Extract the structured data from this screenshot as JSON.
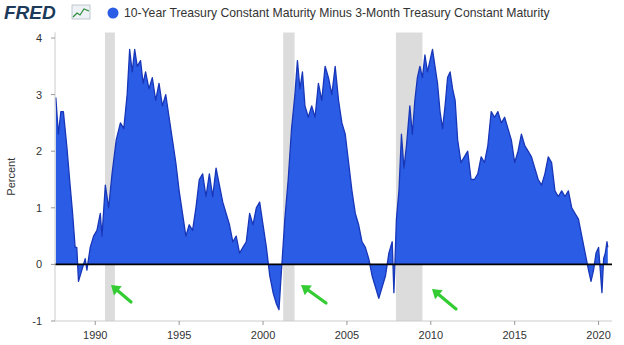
{
  "chart_data": {
    "type": "area",
    "logo": "FRED",
    "y_label": "Percent",
    "x": [
      1987.65,
      1987.8,
      1987.95,
      1988.1,
      1988.3,
      1988.5,
      1988.65,
      1988.8,
      1988.9,
      1989.0,
      1989.2,
      1989.4,
      1989.5,
      1989.7,
      1989.9,
      1990.1,
      1990.3,
      1990.4,
      1990.6,
      1990.8,
      1991.0,
      1991.25,
      1991.5,
      1991.7,
      1991.9,
      1992.05,
      1992.2,
      1992.35,
      1992.5,
      1992.7,
      1992.85,
      1993.0,
      1993.2,
      1993.4,
      1993.6,
      1993.8,
      1994.0,
      1994.2,
      1994.4,
      1994.6,
      1994.8,
      1995.0,
      1995.2,
      1995.4,
      1995.6,
      1995.8,
      1996.0,
      1996.2,
      1996.4,
      1996.6,
      1996.8,
      1997.0,
      1997.2,
      1997.4,
      1997.6,
      1997.8,
      1998.0,
      1998.2,
      1998.4,
      1998.6,
      1998.8,
      1999.0,
      1999.2,
      1999.4,
      1999.6,
      1999.8,
      2000.0,
      2000.2,
      2000.4,
      2000.6,
      2000.8,
      2000.95,
      2001.1,
      2001.3,
      2001.5,
      2001.7,
      2001.9,
      2002.05,
      2002.2,
      2002.35,
      2002.5,
      2002.7,
      2002.9,
      2003.1,
      2003.3,
      2003.5,
      2003.7,
      2003.9,
      2004.1,
      2004.3,
      2004.5,
      2004.7,
      2004.9,
      2005.1,
      2005.3,
      2005.5,
      2005.7,
      2005.9,
      2006.1,
      2006.3,
      2006.5,
      2006.7,
      2006.9,
      2007.1,
      2007.3,
      2007.5,
      2007.7,
      2007.8,
      2007.95,
      2008.1,
      2008.25,
      2008.4,
      2008.55,
      2008.75,
      2008.9,
      2009.05,
      2009.2,
      2009.35,
      2009.5,
      2009.65,
      2009.8,
      2009.95,
      2010.1,
      2010.25,
      2010.4,
      2010.55,
      2010.7,
      2010.85,
      2011.0,
      2011.15,
      2011.3,
      2011.45,
      2011.6,
      2011.8,
      2012.0,
      2012.2,
      2012.4,
      2012.6,
      2012.8,
      2013.0,
      2013.2,
      2013.4,
      2013.6,
      2013.8,
      2014.0,
      2014.2,
      2014.4,
      2014.6,
      2014.8,
      2015.0,
      2015.2,
      2015.4,
      2015.6,
      2015.8,
      2016.0,
      2016.2,
      2016.4,
      2016.6,
      2016.8,
      2017.0,
      2017.2,
      2017.4,
      2017.6,
      2017.8,
      2018.0,
      2018.2,
      2018.4,
      2018.6,
      2018.8,
      2019.0,
      2019.2,
      2019.4,
      2019.55,
      2019.7,
      2019.85,
      2020.0,
      2020.1,
      2020.2,
      2020.3,
      2020.4,
      2020.5,
      2020.55
    ],
    "series": [
      {
        "name": "10-Year Treasury Constant Maturity Minus 3-Month Treasury Constant Maturity",
        "color": "#2b5ce6",
        "values": [
          2.95,
          2.3,
          2.7,
          2.7,
          2.1,
          1.4,
          0.9,
          0.3,
          0.3,
          -0.3,
          -0.1,
          0.1,
          -0.1,
          0.3,
          0.5,
          0.6,
          0.9,
          0.5,
          1.4,
          1.0,
          1.6,
          2.2,
          2.5,
          2.4,
          3.0,
          3.8,
          3.4,
          3.8,
          3.5,
          3.6,
          3.2,
          3.4,
          3.1,
          3.3,
          2.9,
          3.2,
          2.8,
          3.0,
          2.6,
          2.2,
          1.8,
          1.3,
          0.9,
          0.5,
          0.7,
          0.6,
          1.0,
          1.5,
          1.6,
          1.2,
          1.6,
          1.2,
          1.7,
          1.4,
          1.1,
          0.9,
          0.7,
          0.4,
          0.5,
          0.2,
          0.3,
          0.4,
          0.9,
          0.7,
          1.0,
          1.1,
          0.7,
          0.3,
          -0.2,
          -0.5,
          -0.7,
          -0.8,
          -0.1,
          0.8,
          1.5,
          2.4,
          3.0,
          3.6,
          3.1,
          3.4,
          2.8,
          2.6,
          2.8,
          2.6,
          3.2,
          2.9,
          3.5,
          3.3,
          3.0,
          3.5,
          2.9,
          2.5,
          2.3,
          1.8,
          1.3,
          0.9,
          0.7,
          0.4,
          0.3,
          0.1,
          -0.2,
          -0.4,
          -0.6,
          -0.4,
          -0.2,
          0.2,
          0.4,
          -0.5,
          0.8,
          1.3,
          2.3,
          1.7,
          2.1,
          2.8,
          2.3,
          2.9,
          3.3,
          3.5,
          3.3,
          3.7,
          3.4,
          3.6,
          3.8,
          3.5,
          3.2,
          2.7,
          2.4,
          2.8,
          3.3,
          3.4,
          3.1,
          2.9,
          2.2,
          1.8,
          1.9,
          2.0,
          1.5,
          1.5,
          1.6,
          1.9,
          1.8,
          2.1,
          2.7,
          2.6,
          2.7,
          2.5,
          2.6,
          2.4,
          2.2,
          1.8,
          2.0,
          2.3,
          2.1,
          2.0,
          1.9,
          1.7,
          1.5,
          1.4,
          1.6,
          1.9,
          1.8,
          1.3,
          1.2,
          1.3,
          1.2,
          1.3,
          1.0,
          0.9,
          0.8,
          0.5,
          0.2,
          -0.1,
          -0.3,
          -0.1,
          0.2,
          0.3,
          -0.1,
          -0.5,
          0.1,
          0.2,
          0.4,
          0.3
        ]
      }
    ],
    "recessions": [
      {
        "start": 1990.58,
        "end": 1991.17
      },
      {
        "start": 2001.2,
        "end": 2001.88
      },
      {
        "start": 2007.92,
        "end": 2009.5
      }
    ],
    "xlim": [
      1987.6,
      2020.8
    ],
    "xticks": [
      1990,
      1995,
      2000,
      2005,
      2010,
      2015,
      2020
    ],
    "ylim": [
      -1,
      4.1
    ],
    "yticks": [
      -1,
      0,
      1,
      2,
      3,
      4
    ],
    "grid": false,
    "legend": "top"
  }
}
